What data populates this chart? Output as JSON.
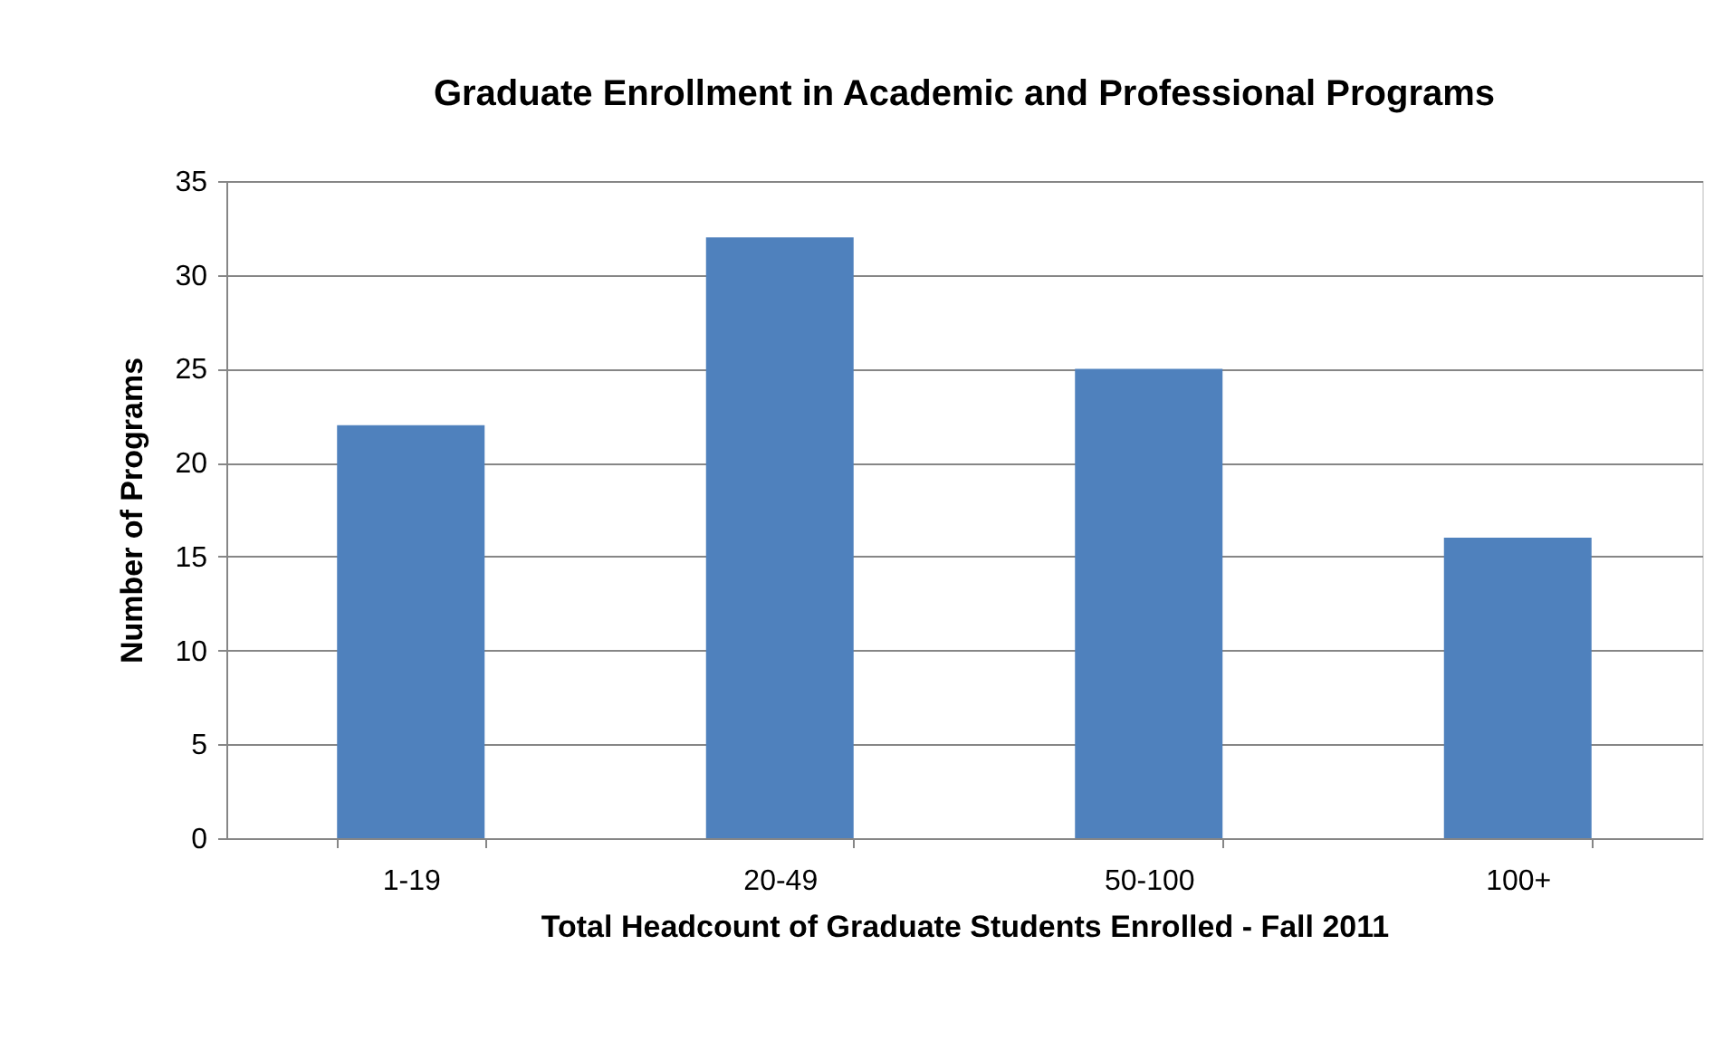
{
  "chart_data": {
    "type": "bar",
    "title": "Graduate Enrollment in Academic and Professional Programs",
    "xlabel": "Total Headcount of Graduate Students Enrolled - Fall 2011",
    "ylabel": "Number of Programs",
    "categories": [
      "1-19",
      "20-49",
      "50-100",
      "100+"
    ],
    "values": [
      22,
      32,
      25,
      16
    ],
    "color": "#4f81bd",
    "ylim": [
      0,
      35
    ],
    "yticks": [
      0,
      5,
      10,
      15,
      20,
      25,
      30,
      35
    ],
    "grid": "y"
  }
}
